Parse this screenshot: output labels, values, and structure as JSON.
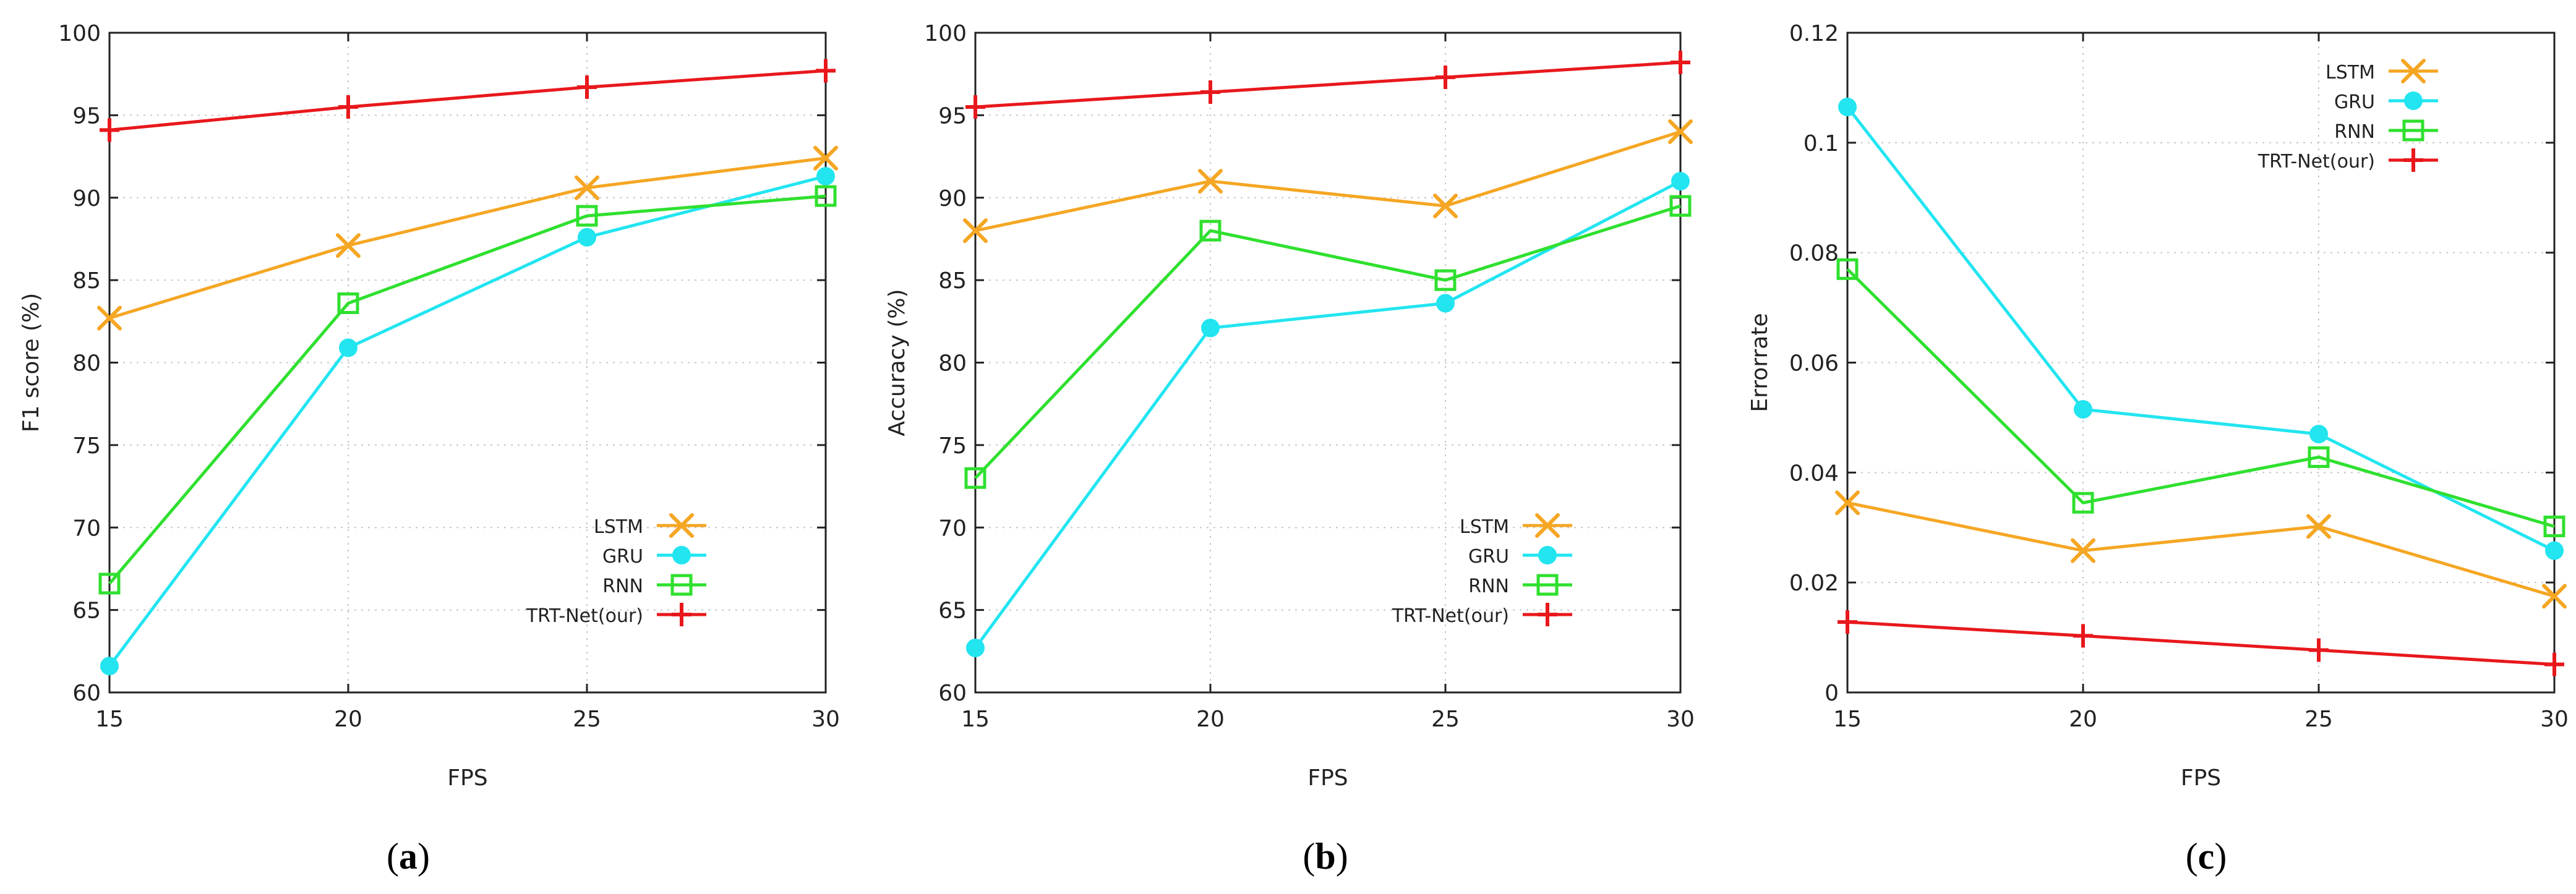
{
  "chart_data": [
    {
      "id": "a",
      "type": "line",
      "panel_label": {
        "open": "(",
        "letter": "a",
        "close": ")"
      },
      "xlabel": "FPS",
      "ylabel": "F1 score (%)",
      "x": [
        15,
        20,
        25,
        30
      ],
      "xticks": [
        15,
        20,
        25,
        30
      ],
      "xlim": [
        15,
        30
      ],
      "ylim": [
        60,
        100
      ],
      "yticks": [
        60,
        65,
        70,
        75,
        80,
        85,
        90,
        95,
        100
      ],
      "ytick_labels": [
        "60",
        "65",
        "70",
        "75",
        "80",
        "85",
        "90",
        "95",
        "100"
      ],
      "grid": true,
      "legend_position": "bottom-right",
      "series": [
        {
          "name": "LSTM",
          "color": "#f5a623",
          "marker": "x",
          "values": [
            82.7,
            87.1,
            90.6,
            92.4
          ]
        },
        {
          "name": "GRU",
          "color": "#22e5f0",
          "marker": "circle",
          "values": [
            61.6,
            80.9,
            87.6,
            91.3
          ]
        },
        {
          "name": "RNN",
          "color": "#2fe02f",
          "marker": "square",
          "values": [
            66.6,
            83.6,
            88.9,
            90.1
          ]
        },
        {
          "name": "TRT-Net(our)",
          "color": "#e8181c",
          "marker": "plus",
          "values": [
            94.1,
            95.5,
            96.7,
            97.7
          ]
        }
      ]
    },
    {
      "id": "b",
      "type": "line",
      "panel_label": {
        "open": "(",
        "letter": "b",
        "close": ")"
      },
      "xlabel": "FPS",
      "ylabel": "Accuracy (%)",
      "x": [
        15,
        20,
        25,
        30
      ],
      "xticks": [
        15,
        20,
        25,
        30
      ],
      "xlim": [
        15,
        30
      ],
      "ylim": [
        60,
        100
      ],
      "yticks": [
        60,
        65,
        70,
        75,
        80,
        85,
        90,
        95,
        100
      ],
      "ytick_labels": [
        "60",
        "65",
        "70",
        "75",
        "80",
        "85",
        "90",
        "95",
        "100"
      ],
      "grid": true,
      "legend_position": "bottom-right",
      "series": [
        {
          "name": "LSTM",
          "color": "#f5a623",
          "marker": "x",
          "values": [
            88.0,
            91.0,
            89.5,
            94.0
          ]
        },
        {
          "name": "GRU",
          "color": "#22e5f0",
          "marker": "circle",
          "values": [
            62.7,
            82.1,
            83.6,
            91.0
          ]
        },
        {
          "name": "RNN",
          "color": "#2fe02f",
          "marker": "square",
          "values": [
            73.0,
            88.0,
            85.0,
            89.5
          ]
        },
        {
          "name": "TRT-Net(our)",
          "color": "#e8181c",
          "marker": "plus",
          "values": [
            95.5,
            96.4,
            97.3,
            98.2
          ]
        }
      ]
    },
    {
      "id": "c",
      "type": "line",
      "panel_label": {
        "open": "(",
        "letter": "c",
        "close": ")"
      },
      "xlabel": "FPS",
      "ylabel": "Errorrate",
      "x": [
        15,
        20,
        25,
        30
      ],
      "xticks": [
        15,
        20,
        25,
        30
      ],
      "xlim": [
        15,
        30
      ],
      "ylim": [
        0,
        0.12
      ],
      "yticks": [
        0,
        0.02,
        0.04,
        0.06,
        0.08,
        0.1,
        0.12
      ],
      "ytick_labels": [
        "0",
        "0.02",
        "0.04",
        "0.06",
        "0.08",
        "0.1",
        "0.12"
      ],
      "grid": true,
      "legend_position": "top-right",
      "series": [
        {
          "name": "LSTM",
          "color": "#f5a623",
          "marker": "x",
          "values": [
            0.0345,
            0.0258,
            0.0302,
            0.0175
          ]
        },
        {
          "name": "GRU",
          "color": "#22e5f0",
          "marker": "circle",
          "values": [
            0.1065,
            0.0515,
            0.047,
            0.0258
          ]
        },
        {
          "name": "RNN",
          "color": "#2fe02f",
          "marker": "square",
          "values": [
            0.077,
            0.0345,
            0.0428,
            0.0302
          ]
        },
        {
          "name": "TRT-Net(our)",
          "color": "#e8181c",
          "marker": "plus",
          "values": [
            0.0128,
            0.0103,
            0.0077,
            0.0051
          ]
        }
      ]
    }
  ]
}
